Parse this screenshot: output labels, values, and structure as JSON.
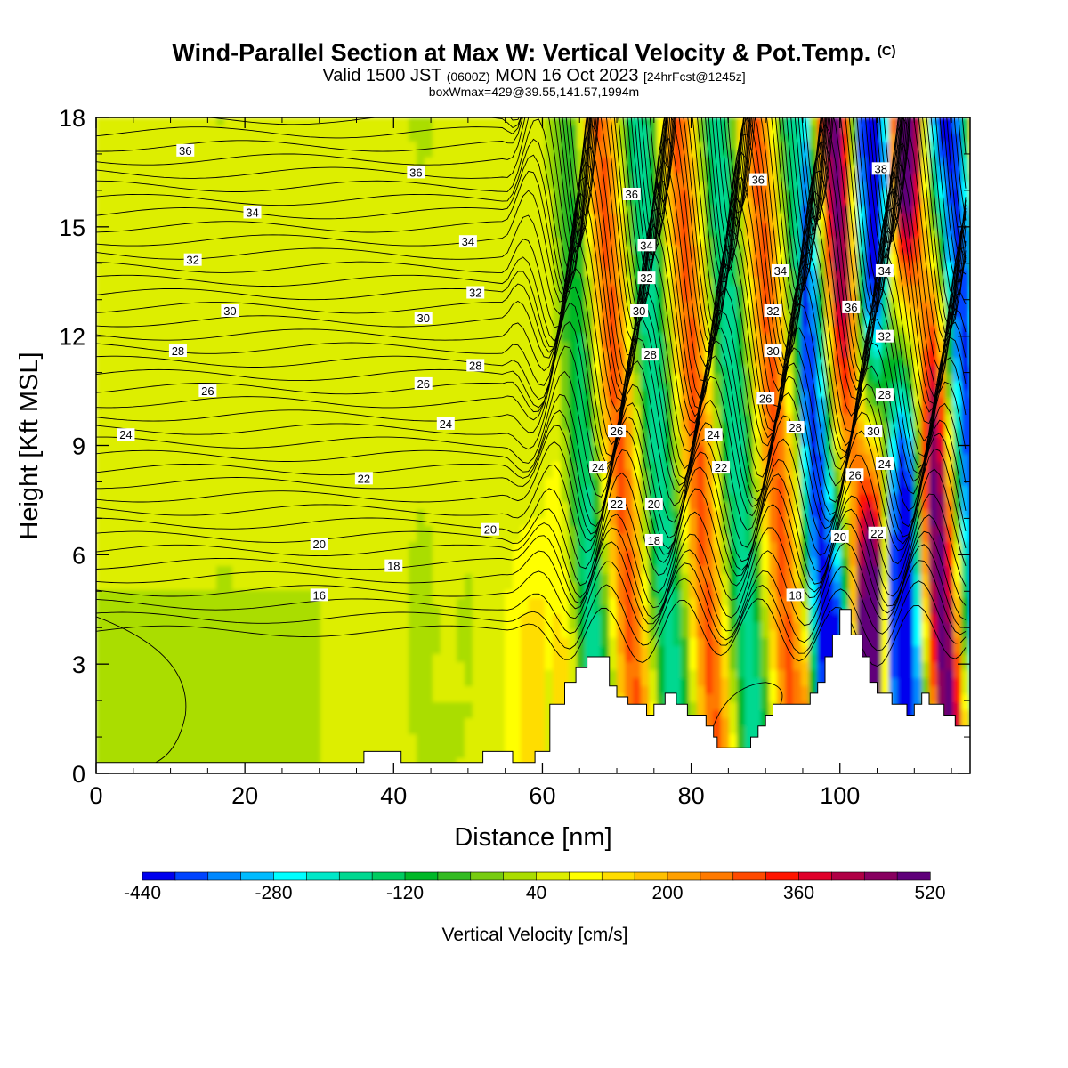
{
  "header": {
    "title": "Wind-Parallel Section at Max W: Vertical Velocity & Pot.Temp.",
    "title_mark": "(C)",
    "subtitle_pre": "Valid 1500 JST",
    "subtitle_small": "(0600Z)",
    "subtitle_post": "MON 16 Oct 2023",
    "subtitle_fcst": "[24hrFcst@1245z]",
    "info": "boxWmax=429@39.55,141.57,1994m"
  },
  "chart_data": {
    "type": "heatmap",
    "xlabel": "Distance [nm]",
    "ylabel": "Height [Kft MSL]",
    "xlim": [
      0,
      117.5
    ],
    "ylim": [
      0,
      18
    ],
    "x_ticks": [
      0,
      20,
      40,
      60,
      80,
      100
    ],
    "y_ticks": [
      0,
      3,
      6,
      9,
      12,
      15,
      18
    ],
    "colorbar": {
      "label": "Vertical Velocity [cm/s]",
      "tick_labels": [
        "-440",
        "-280",
        "-120",
        "40",
        "200",
        "360",
        "520"
      ],
      "tick_values": [
        -440,
        -280,
        -120,
        40,
        200,
        360,
        520
      ],
      "colors": [
        "#0000ee",
        "#0044ff",
        "#0088ff",
        "#00bbff",
        "#00ffff",
        "#00e8c8",
        "#00d890",
        "#00cc60",
        "#00b828",
        "#33bb22",
        "#77cc11",
        "#aadd00",
        "#ddee00",
        "#ffff00",
        "#ffdd00",
        "#ffc000",
        "#ffa000",
        "#ff7a00",
        "#ff4a00",
        "#ff1500",
        "#e0002a",
        "#b00045",
        "#880060",
        "#60007a"
      ]
    },
    "terrain_profile_nm_kft": [
      [
        0,
        0.3
      ],
      [
        36,
        0.3
      ],
      [
        36,
        0.6
      ],
      [
        41,
        0.6
      ],
      [
        41,
        0.3
      ],
      [
        52,
        0.3
      ],
      [
        52,
        0.6
      ],
      [
        56,
        0.6
      ],
      [
        56,
        0.3
      ],
      [
        59,
        0.3
      ],
      [
        59,
        0.6
      ],
      [
        61,
        0.6
      ],
      [
        61,
        1.9
      ],
      [
        63,
        1.9
      ],
      [
        63,
        2.5
      ],
      [
        64.5,
        2.5
      ],
      [
        64.5,
        2.9
      ],
      [
        66,
        2.9
      ],
      [
        66,
        3.2
      ],
      [
        69,
        3.2
      ],
      [
        69,
        2.4
      ],
      [
        70,
        2.4
      ],
      [
        70,
        2.1
      ],
      [
        71.5,
        2.1
      ],
      [
        71.5,
        1.9
      ],
      [
        74,
        1.9
      ],
      [
        74,
        1.6
      ],
      [
        75,
        1.6
      ],
      [
        75,
        1.9
      ],
      [
        76.5,
        1.9
      ],
      [
        76.5,
        2.2
      ],
      [
        78,
        2.2
      ],
      [
        78,
        1.9
      ],
      [
        79.5,
        1.9
      ],
      [
        79.5,
        1.6
      ],
      [
        82,
        1.6
      ],
      [
        82,
        1.3
      ],
      [
        83,
        1.3
      ],
      [
        83,
        1.0
      ],
      [
        83.5,
        1.0
      ],
      [
        83.5,
        0.7
      ],
      [
        88,
        0.7
      ],
      [
        88,
        1.0
      ],
      [
        89,
        1.0
      ],
      [
        89,
        1.3
      ],
      [
        90,
        1.3
      ],
      [
        90,
        1.6
      ],
      [
        91,
        1.6
      ],
      [
        91,
        1.9
      ],
      [
        96,
        1.9
      ],
      [
        96,
        2.2
      ],
      [
        97,
        2.2
      ],
      [
        97,
        2.5
      ],
      [
        98,
        2.5
      ],
      [
        98,
        3.2
      ],
      [
        99,
        3.2
      ],
      [
        99,
        3.8
      ],
      [
        100,
        3.8
      ],
      [
        100,
        4.5
      ],
      [
        101.5,
        4.5
      ],
      [
        101.5,
        3.8
      ],
      [
        103,
        3.8
      ],
      [
        103,
        3.2
      ],
      [
        104,
        3.2
      ],
      [
        104,
        2.5
      ],
      [
        105,
        2.5
      ],
      [
        105,
        2.2
      ],
      [
        107,
        2.2
      ],
      [
        107,
        1.9
      ],
      [
        109,
        1.9
      ],
      [
        109,
        1.6
      ],
      [
        110,
        1.6
      ],
      [
        110,
        1.9
      ],
      [
        111,
        1.9
      ],
      [
        111,
        2.2
      ],
      [
        112,
        2.2
      ],
      [
        112,
        1.9
      ],
      [
        114,
        1.9
      ],
      [
        114,
        1.6
      ],
      [
        115.5,
        1.6
      ],
      [
        115.5,
        1.3
      ],
      [
        117.5,
        1.3
      ]
    ],
    "isentrope_labels": [
      {
        "text": "36",
        "x": 12,
        "y": 17.1
      },
      {
        "text": "36",
        "x": 43,
        "y": 16.5
      },
      {
        "text": "34",
        "x": 21,
        "y": 15.4
      },
      {
        "text": "34",
        "x": 50,
        "y": 14.6
      },
      {
        "text": "32",
        "x": 13,
        "y": 14.1
      },
      {
        "text": "32",
        "x": 51,
        "y": 13.2
      },
      {
        "text": "30",
        "x": 18,
        "y": 12.7
      },
      {
        "text": "30",
        "x": 44,
        "y": 12.5
      },
      {
        "text": "28",
        "x": 11,
        "y": 11.6
      },
      {
        "text": "28",
        "x": 51,
        "y": 11.2
      },
      {
        "text": "26",
        "x": 15,
        "y": 10.5
      },
      {
        "text": "26",
        "x": 44,
        "y": 10.7
      },
      {
        "text": "24",
        "x": 4,
        "y": 9.3
      },
      {
        "text": "24",
        "x": 47,
        "y": 9.6
      },
      {
        "text": "22",
        "x": 36,
        "y": 8.1
      },
      {
        "text": "20",
        "x": 30,
        "y": 6.3
      },
      {
        "text": "20",
        "x": 53,
        "y": 6.7
      },
      {
        "text": "18",
        "x": 40,
        "y": 5.7
      },
      {
        "text": "16",
        "x": 30,
        "y": 4.9
      },
      {
        "text": "36",
        "x": 72,
        "y": 15.9
      },
      {
        "text": "34",
        "x": 74,
        "y": 14.5
      },
      {
        "text": "32",
        "x": 74,
        "y": 13.6
      },
      {
        "text": "30",
        "x": 73,
        "y": 12.7
      },
      {
        "text": "28",
        "x": 74.5,
        "y": 11.5
      },
      {
        "text": "26",
        "x": 70,
        "y": 9.4
      },
      {
        "text": "24",
        "x": 67.5,
        "y": 8.4
      },
      {
        "text": "22",
        "x": 70,
        "y": 7.4
      },
      {
        "text": "20",
        "x": 75,
        "y": 7.4
      },
      {
        "text": "18",
        "x": 75,
        "y": 6.4
      },
      {
        "text": "36",
        "x": 89,
        "y": 16.3
      },
      {
        "text": "34",
        "x": 92,
        "y": 13.8
      },
      {
        "text": "32",
        "x": 91,
        "y": 12.7
      },
      {
        "text": "30",
        "x": 91,
        "y": 11.6
      },
      {
        "text": "26",
        "x": 90,
        "y": 10.3
      },
      {
        "text": "28",
        "x": 94,
        "y": 9.5
      },
      {
        "text": "24",
        "x": 83,
        "y": 9.3
      },
      {
        "text": "22",
        "x": 84,
        "y": 8.4
      },
      {
        "text": "18",
        "x": 94,
        "y": 4.9
      },
      {
        "text": "20",
        "x": 100,
        "y": 6.5
      },
      {
        "text": "38",
        "x": 105.5,
        "y": 16.6
      },
      {
        "text": "36",
        "x": 101.5,
        "y": 12.8
      },
      {
        "text": "34",
        "x": 106,
        "y": 13.8
      },
      {
        "text": "32",
        "x": 106,
        "y": 12.0
      },
      {
        "text": "28",
        "x": 106,
        "y": 10.4
      },
      {
        "text": "30",
        "x": 104.5,
        "y": 9.4
      },
      {
        "text": "26",
        "x": 102,
        "y": 8.2
      },
      {
        "text": "24",
        "x": 106,
        "y": 8.5
      },
      {
        "text": "22",
        "x": 105,
        "y": 6.6
      }
    ]
  }
}
